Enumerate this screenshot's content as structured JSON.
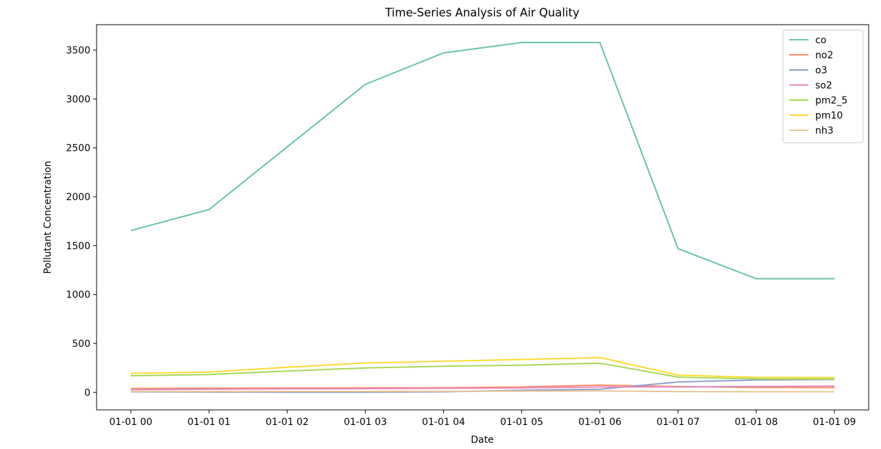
{
  "chart_data": {
    "type": "line",
    "title": "Time-Series Analysis of Air Quality",
    "xlabel": "Date",
    "ylabel": "Pollutant Concentration",
    "categories": [
      "01-01 00",
      "01-01 01",
      "01-01 02",
      "01-01 03",
      "01-01 04",
      "01-01 05",
      "01-01 06",
      "01-01 07",
      "01-01 08",
      "01-01 09"
    ],
    "ylim": [
      -180,
      3760
    ],
    "yticks": [
      0,
      500,
      1000,
      1500,
      2000,
      2500,
      3000,
      3500
    ],
    "grid": false,
    "legend_position": "top-right",
    "series": [
      {
        "name": "co",
        "color": "#66c2a5",
        "values": [
          1655,
          1869,
          2510,
          3150,
          3471,
          3578,
          3578,
          1469,
          1162,
          1162
        ]
      },
      {
        "name": "no2",
        "color": "#fc8d62",
        "values": [
          39,
          42,
          44,
          46,
          47,
          55,
          74,
          59,
          50,
          48
        ]
      },
      {
        "name": "o3",
        "color": "#8da0cb",
        "values": [
          5,
          2,
          1,
          0,
          5,
          22,
          32,
          106,
          126,
          132
        ]
      },
      {
        "name": "so2",
        "color": "#e78ac3",
        "values": [
          27,
          31,
          35,
          37,
          40,
          45,
          55,
          55,
          60,
          64
        ]
      },
      {
        "name": "pm2_5",
        "color": "#a6d854",
        "values": [
          170,
          182,
          218,
          250,
          267,
          277,
          298,
          156,
          137,
          136
        ]
      },
      {
        "name": "pm10",
        "color": "#ffd92f",
        "values": [
          194,
          208,
          256,
          300,
          318,
          336,
          355,
          176,
          152,
          151
        ]
      },
      {
        "name": "nh3",
        "color": "#e5c494",
        "values": [
          8,
          8,
          9,
          9,
          10,
          12,
          14,
          8,
          6,
          6
        ]
      }
    ]
  }
}
